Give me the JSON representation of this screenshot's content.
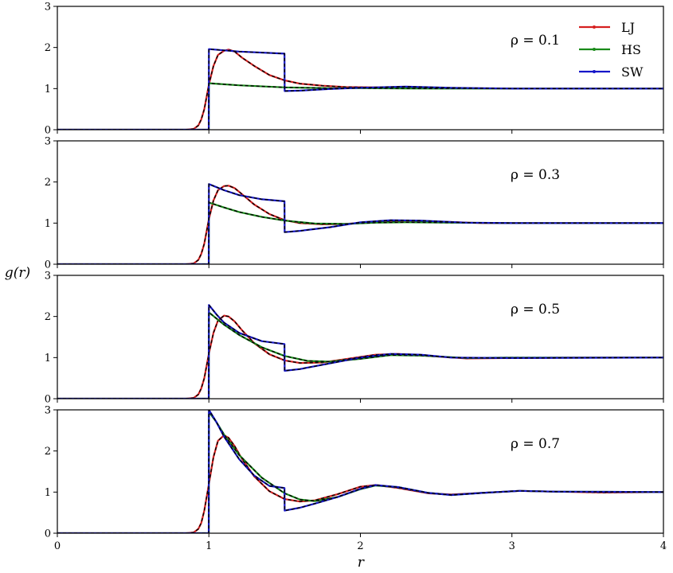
{
  "chart_data": {
    "type": "line",
    "xlabel": "r",
    "ylabel": "g(r)",
    "xlim": [
      0,
      4
    ],
    "ylim": [
      0,
      3
    ],
    "xticks": [
      "0",
      "1",
      "2",
      "3",
      "4"
    ],
    "yticks": [
      "0",
      "1",
      "2",
      "3"
    ],
    "legend": {
      "placement": "top-right",
      "entries": [
        {
          "name": "LJ",
          "color": "#d62020"
        },
        {
          "name": "HS",
          "color": "#1a8a1a"
        },
        {
          "name": "SW",
          "color": "#1515c8"
        }
      ]
    },
    "panels": [
      {
        "annotation": "ρ = 0.1",
        "series": [
          {
            "name": "LJ",
            "x": [
              0,
              0.85,
              0.9,
              0.93,
              0.95,
              0.97,
              1.0,
              1.03,
              1.06,
              1.1,
              1.13,
              1.17,
              1.22,
              1.3,
              1.4,
              1.5,
              1.6,
              1.75,
              1.9,
              2.1,
              2.3,
              2.6,
              3.0,
              4.0
            ],
            "y": [
              0,
              0,
              0.02,
              0.1,
              0.25,
              0.5,
              1.1,
              1.55,
              1.82,
              1.92,
              1.95,
              1.9,
              1.75,
              1.55,
              1.33,
              1.2,
              1.12,
              1.07,
              1.04,
              1.03,
              1.02,
              1.01,
              1.0,
              1.0
            ]
          },
          {
            "name": "HS",
            "x": [
              0,
              0.999,
              1.0,
              1.2,
              1.5,
              1.8,
              2.0,
              2.5,
              3.0,
              4.0
            ],
            "y": [
              0,
              0,
              1.13,
              1.08,
              1.03,
              1.01,
              1.01,
              1.0,
              1.0,
              1.0
            ]
          },
          {
            "name": "SW",
            "x": [
              0,
              0.999,
              1.0,
              1.2,
              1.499,
              1.5,
              1.6,
              1.8,
              2.0,
              2.3,
              2.6,
              3.0,
              4.0
            ],
            "y": [
              0,
              0,
              1.96,
              1.9,
              1.85,
              0.94,
              0.95,
              0.99,
              1.02,
              1.05,
              1.02,
              1.0,
              1.0
            ]
          }
        ]
      },
      {
        "annotation": "ρ = 0.3",
        "series": [
          {
            "name": "LJ",
            "x": [
              0,
              0.85,
              0.9,
              0.93,
              0.95,
              0.97,
              1.0,
              1.03,
              1.06,
              1.1,
              1.13,
              1.17,
              1.22,
              1.3,
              1.4,
              1.5,
              1.6,
              1.75,
              1.9,
              2.1,
              2.3,
              2.5,
              2.8,
              3.2,
              4.0
            ],
            "y": [
              0,
              0,
              0.02,
              0.1,
              0.25,
              0.5,
              1.1,
              1.55,
              1.8,
              1.9,
              1.91,
              1.85,
              1.7,
              1.45,
              1.22,
              1.07,
              1.0,
              0.97,
              0.98,
              1.03,
              1.06,
              1.04,
              1.0,
              1.0,
              1.0
            ]
          },
          {
            "name": "HS",
            "x": [
              0,
              0.999,
              1.0,
              1.1,
              1.2,
              1.35,
              1.5,
              1.7,
              1.9,
              2.1,
              2.3,
              2.6,
              3.0,
              4.0
            ],
            "y": [
              0,
              0,
              1.5,
              1.38,
              1.27,
              1.15,
              1.06,
              0.99,
              0.98,
              1.01,
              1.02,
              1.01,
              1.0,
              1.0
            ]
          },
          {
            "name": "SW",
            "x": [
              0,
              0.999,
              1.0,
              1.1,
              1.2,
              1.35,
              1.499,
              1.5,
              1.6,
              1.8,
              2.0,
              2.2,
              2.4,
              2.7,
              3.0,
              4.0
            ],
            "y": [
              0,
              0,
              1.95,
              1.8,
              1.68,
              1.58,
              1.53,
              0.78,
              0.81,
              0.9,
              1.02,
              1.07,
              1.06,
              1.01,
              1.0,
              1.0
            ]
          }
        ]
      },
      {
        "annotation": "ρ = 0.5",
        "series": [
          {
            "name": "LJ",
            "x": [
              0,
              0.85,
              0.9,
              0.93,
              0.95,
              0.97,
              1.0,
              1.03,
              1.06,
              1.1,
              1.13,
              1.17,
              1.22,
              1.3,
              1.4,
              1.5,
              1.6,
              1.75,
              1.9,
              2.1,
              2.25,
              2.45,
              2.7,
              3.0,
              3.4,
              4.0
            ],
            "y": [
              0,
              0,
              0.02,
              0.1,
              0.25,
              0.5,
              1.1,
              1.6,
              1.9,
              2.02,
              2.0,
              1.88,
              1.66,
              1.35,
              1.08,
              0.93,
              0.87,
              0.88,
              0.96,
              1.07,
              1.09,
              1.04,
              0.98,
              0.99,
              1.0,
              1.0
            ]
          },
          {
            "name": "HS",
            "x": [
              0,
              0.999,
              1.0,
              1.1,
              1.2,
              1.35,
              1.5,
              1.65,
              1.8,
              2.0,
              2.2,
              2.4,
              2.7,
              3.0,
              4.0
            ],
            "y": [
              0,
              0,
              2.1,
              1.8,
              1.55,
              1.25,
              1.04,
              0.92,
              0.9,
              0.97,
              1.06,
              1.05,
              0.99,
              1.0,
              1.0
            ]
          },
          {
            "name": "SW",
            "x": [
              0,
              0.999,
              1.0,
              1.05,
              1.1,
              1.2,
              1.35,
              1.499,
              1.5,
              1.6,
              1.8,
              2.0,
              2.2,
              2.4,
              2.6,
              3.0,
              4.0
            ],
            "y": [
              0,
              0,
              2.28,
              2.05,
              1.85,
              1.6,
              1.4,
              1.33,
              0.68,
              0.72,
              0.86,
              1.0,
              1.09,
              1.07,
              1.0,
              0.99,
              1.0
            ]
          }
        ]
      },
      {
        "annotation": "ρ = 0.7",
        "series": [
          {
            "name": "LJ",
            "x": [
              0,
              0.85,
              0.9,
              0.93,
              0.95,
              0.97,
              1.0,
              1.03,
              1.06,
              1.1,
              1.13,
              1.17,
              1.22,
              1.3,
              1.4,
              1.5,
              1.6,
              1.7,
              1.85,
              2.0,
              2.1,
              2.25,
              2.45,
              2.6,
              2.8,
              3.05,
              3.3,
              3.6,
              4.0
            ],
            "y": [
              0,
              0,
              0.02,
              0.1,
              0.25,
              0.55,
              1.2,
              1.85,
              2.25,
              2.38,
              2.32,
              2.12,
              1.8,
              1.38,
              1.02,
              0.83,
              0.77,
              0.8,
              0.95,
              1.13,
              1.17,
              1.1,
              0.97,
              0.94,
              0.98,
              1.03,
              1.01,
              0.99,
              1.0
            ]
          },
          {
            "name": "HS",
            "x": [
              0,
              0.999,
              1.0,
              1.05,
              1.1,
              1.2,
              1.35,
              1.5,
              1.6,
              1.7,
              1.85,
              2.0,
              2.1,
              2.25,
              2.45,
              2.6,
              2.8,
              3.05,
              3.3,
              4.0
            ],
            "y": [
              0,
              0,
              2.95,
              2.7,
              2.4,
              1.9,
              1.35,
              0.97,
              0.82,
              0.78,
              0.88,
              1.07,
              1.16,
              1.12,
              0.98,
              0.93,
              0.98,
              1.03,
              1.01,
              1.0
            ]
          },
          {
            "name": "SW",
            "x": [
              0,
              0.999,
              1.0,
              1.05,
              1.1,
              1.2,
              1.3,
              1.4,
              1.499,
              1.5,
              1.6,
              1.7,
              1.85,
              2.0,
              2.1,
              2.25,
              2.45,
              2.6,
              2.8,
              3.05,
              3.3,
              4.0
            ],
            "y": [
              0,
              0,
              3.0,
              2.7,
              2.35,
              1.8,
              1.4,
              1.15,
              1.1,
              0.55,
              0.62,
              0.72,
              0.88,
              1.08,
              1.17,
              1.12,
              0.98,
              0.93,
              0.98,
              1.03,
              1.01,
              1.0
            ]
          }
        ]
      }
    ]
  }
}
